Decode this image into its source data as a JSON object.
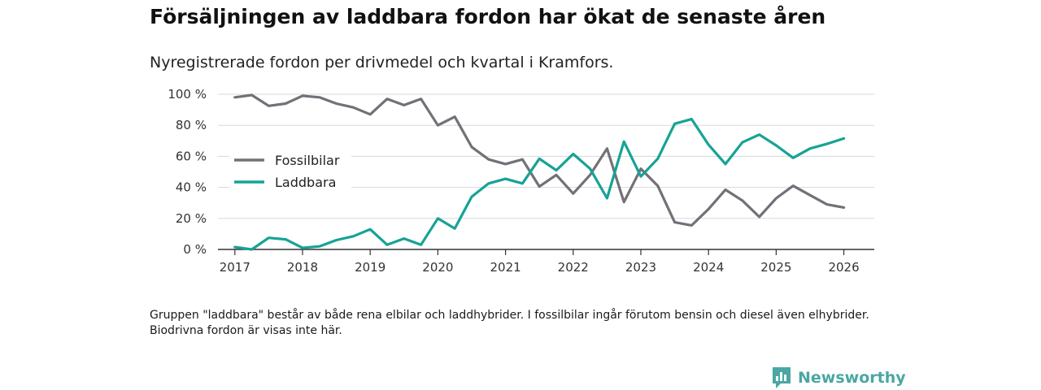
{
  "header": {
    "title": "Försäljningen av laddbara fordon har ökat de senaste åren",
    "subtitle": "Nyregistrerade fordon per drivmedel och kvartal i Kramfors."
  },
  "footnote": "Gruppen \"laddbara\" består av både rena elbilar och laddhybrider. I fossilbilar ingår förutom bensin och diesel även elhybrider. Biodrivna fordon är visas inte här.",
  "brand": {
    "name": "Newsworthy",
    "color": "#4aa7a3"
  },
  "chart_data": {
    "type": "line",
    "title": "Försäljningen av laddbara fordon har ökat de senaste åren",
    "xlabel": "",
    "ylabel": "",
    "xlim": [
      2016.75,
      2026.45
    ],
    "ylim": [
      0,
      100
    ],
    "yticks": [
      0,
      20,
      40,
      60,
      80,
      100
    ],
    "ytick_labels": [
      "0 %",
      "20 %",
      "40 %",
      "60 %",
      "80 %",
      "100 %"
    ],
    "xticks": [
      2017,
      2018,
      2019,
      2020,
      2021,
      2022,
      2023,
      2024,
      2025,
      2026
    ],
    "xtick_labels": [
      "2017",
      "2018",
      "2019",
      "2020",
      "2021",
      "2022",
      "2023",
      "2024",
      "2025",
      "2026"
    ],
    "grid": true,
    "legend_position": "left-middle",
    "x": [
      2017.0,
      2017.25,
      2017.5,
      2017.75,
      2018.0,
      2018.25,
      2018.5,
      2018.75,
      2019.0,
      2019.25,
      2019.5,
      2019.75,
      2020.0,
      2020.25,
      2020.5,
      2020.75,
      2021.0,
      2021.25,
      2021.5,
      2021.75,
      2022.0,
      2022.25,
      2022.5,
      2022.75,
      2023.0,
      2023.25,
      2023.5,
      2023.75,
      2024.0,
      2024.25,
      2024.5,
      2024.75,
      2025.0,
      2025.25,
      2025.5,
      2025.75,
      2026.0
    ],
    "series": [
      {
        "name": "Fossilbilar",
        "color": "#737078",
        "values": [
          98,
          99.5,
          92.5,
          94,
          99,
          98,
          94,
          91.5,
          87,
          97,
          93,
          97,
          80,
          85.5,
          66,
          58,
          55,
          58,
          40.5,
          48,
          36,
          48,
          65,
          30.5,
          52,
          41,
          17.5,
          15.5,
          26,
          38.5,
          31.5,
          21,
          33,
          41,
          35,
          29,
          27
        ]
      },
      {
        "name": "Laddbara",
        "color": "#16a396",
        "values": [
          1.5,
          0,
          7.5,
          6.5,
          1,
          2,
          6,
          8.5,
          13,
          3,
          7,
          3,
          20,
          13.5,
          34,
          42.5,
          45.5,
          42.5,
          58.5,
          51,
          61.5,
          52,
          33,
          69.5,
          47,
          58.5,
          81,
          84,
          67.5,
          55,
          69,
          74,
          67,
          59,
          65,
          68,
          71.5
        ]
      }
    ]
  }
}
